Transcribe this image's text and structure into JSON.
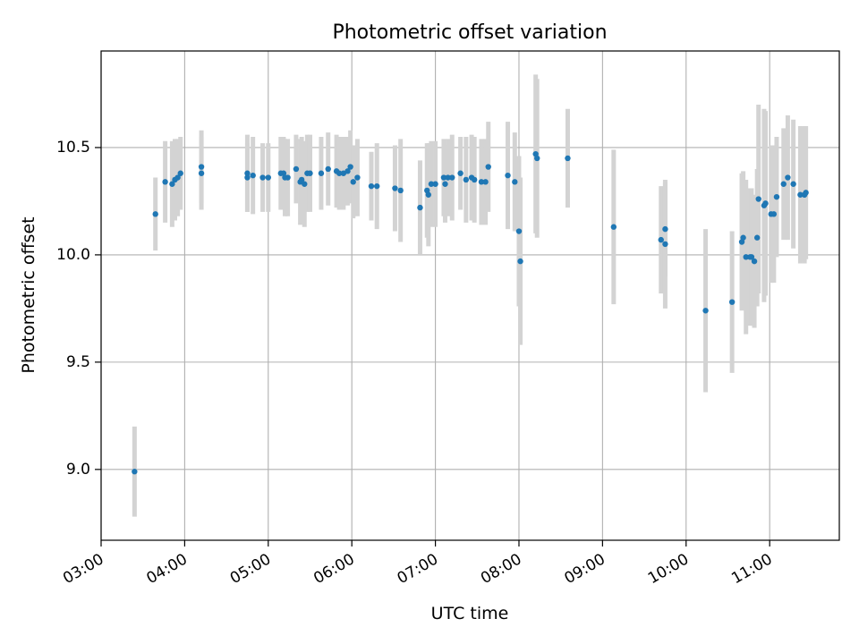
{
  "chart_data": {
    "type": "scatter",
    "title": "Photometric offset variation",
    "xlabel": "UTC time",
    "ylabel": "Photometric offset",
    "xlim": [
      "03:00",
      "11:50"
    ],
    "ylim": [
      8.67,
      10.95
    ],
    "x_ticks": [
      "03:00",
      "04:00",
      "05:00",
      "06:00",
      "07:00",
      "08:00",
      "09:00",
      "10:00",
      "11:00"
    ],
    "y_ticks": [
      9.0,
      9.5,
      10.0,
      10.5
    ],
    "y_tick_labels": [
      "9.0",
      "9.5",
      "10.0",
      "10.5"
    ],
    "grid": true,
    "colors": {
      "point": "#1f77b4",
      "errorbar": "#d3d3d3",
      "grid": "#b0b0b0"
    },
    "series": [
      {
        "x": [
          "03:24",
          "03:39",
          "03:46",
          "03:51",
          "03:53",
          "03:55",
          "03:57",
          "04:12",
          "04:12",
          "04:45",
          "04:45",
          "04:49",
          "04:56",
          "05:00",
          "05:09",
          "05:11",
          "05:12",
          "05:14",
          "05:20",
          "05:23",
          "05:24",
          "05:26",
          "05:28",
          "05:30",
          "05:38",
          "05:43",
          "05:49",
          "05:51",
          "05:54",
          "05:57",
          "05:59",
          "06:01",
          "06:04",
          "06:14",
          "06:18",
          "06:31",
          "06:35",
          "06:49",
          "06:54",
          "06:55",
          "06:57",
          "07:00",
          "07:06",
          "07:07",
          "07:09",
          "07:12",
          "07:18",
          "07:22",
          "07:26",
          "07:28",
          "07:33",
          "07:36",
          "07:38",
          "07:52",
          "07:57",
          "08:00",
          "08:01",
          "08:12",
          "08:13",
          "08:35",
          "09:08",
          "09:42",
          "09:45",
          "09:45",
          "10:14",
          "10:33",
          "10:40",
          "10:41",
          "10:43",
          "10:46",
          "10:47",
          "10:49",
          "10:51",
          "10:52",
          "10:56",
          "10:57",
          "11:01",
          "11:03",
          "11:05",
          "11:10",
          "11:13",
          "11:17",
          "11:22",
          "11:25",
          "11:25",
          "11:26"
        ],
        "y": [
          8.99,
          10.19,
          10.34,
          10.33,
          10.35,
          10.36,
          10.38,
          10.38,
          10.41,
          10.36,
          10.38,
          10.37,
          10.36,
          10.36,
          10.38,
          10.38,
          10.36,
          10.36,
          10.4,
          10.34,
          10.35,
          10.33,
          10.38,
          10.38,
          10.38,
          10.4,
          10.39,
          10.38,
          10.38,
          10.39,
          10.41,
          10.34,
          10.36,
          10.32,
          10.32,
          10.31,
          10.3,
          10.22,
          10.3,
          10.28,
          10.33,
          10.33,
          10.36,
          10.33,
          10.36,
          10.36,
          10.38,
          10.35,
          10.36,
          10.35,
          10.34,
          10.34,
          10.41,
          10.37,
          10.34,
          10.11,
          9.97,
          10.47,
          10.45,
          10.45,
          10.13,
          10.07,
          10.05,
          10.12,
          9.74,
          9.78,
          10.06,
          10.08,
          9.99,
          9.99,
          9.99,
          9.97,
          10.08,
          10.26,
          10.23,
          10.24,
          10.19,
          10.19,
          10.27,
          10.33,
          10.36,
          10.33,
          10.28,
          10.28,
          10.28,
          10.29
        ],
        "yerr": [
          0.21,
          0.17,
          0.19,
          0.2,
          0.19,
          0.18,
          0.17,
          0.17,
          0.17,
          0.16,
          0.18,
          0.18,
          0.16,
          0.16,
          0.17,
          0.17,
          0.18,
          0.18,
          0.16,
          0.2,
          0.2,
          0.2,
          0.18,
          0.18,
          0.17,
          0.17,
          0.17,
          0.17,
          0.17,
          0.16,
          0.17,
          0.17,
          0.18,
          0.16,
          0.2,
          0.2,
          0.24,
          0.22,
          0.22,
          0.24,
          0.2,
          0.2,
          0.18,
          0.18,
          0.18,
          0.2,
          0.17,
          0.2,
          0.2,
          0.2,
          0.2,
          0.2,
          0.21,
          0.25,
          0.23,
          0.35,
          0.39,
          0.37,
          0.37,
          0.23,
          0.36,
          0.25,
          0.3,
          0.22,
          0.38,
          0.33,
          0.32,
          0.31,
          0.36,
          0.32,
          0.32,
          0.31,
          0.32,
          0.44,
          0.45,
          0.43,
          0.32,
          0.32,
          0.28,
          0.26,
          0.29,
          0.3,
          0.32,
          0.31,
          0.32,
          0.31
        ]
      }
    ]
  }
}
